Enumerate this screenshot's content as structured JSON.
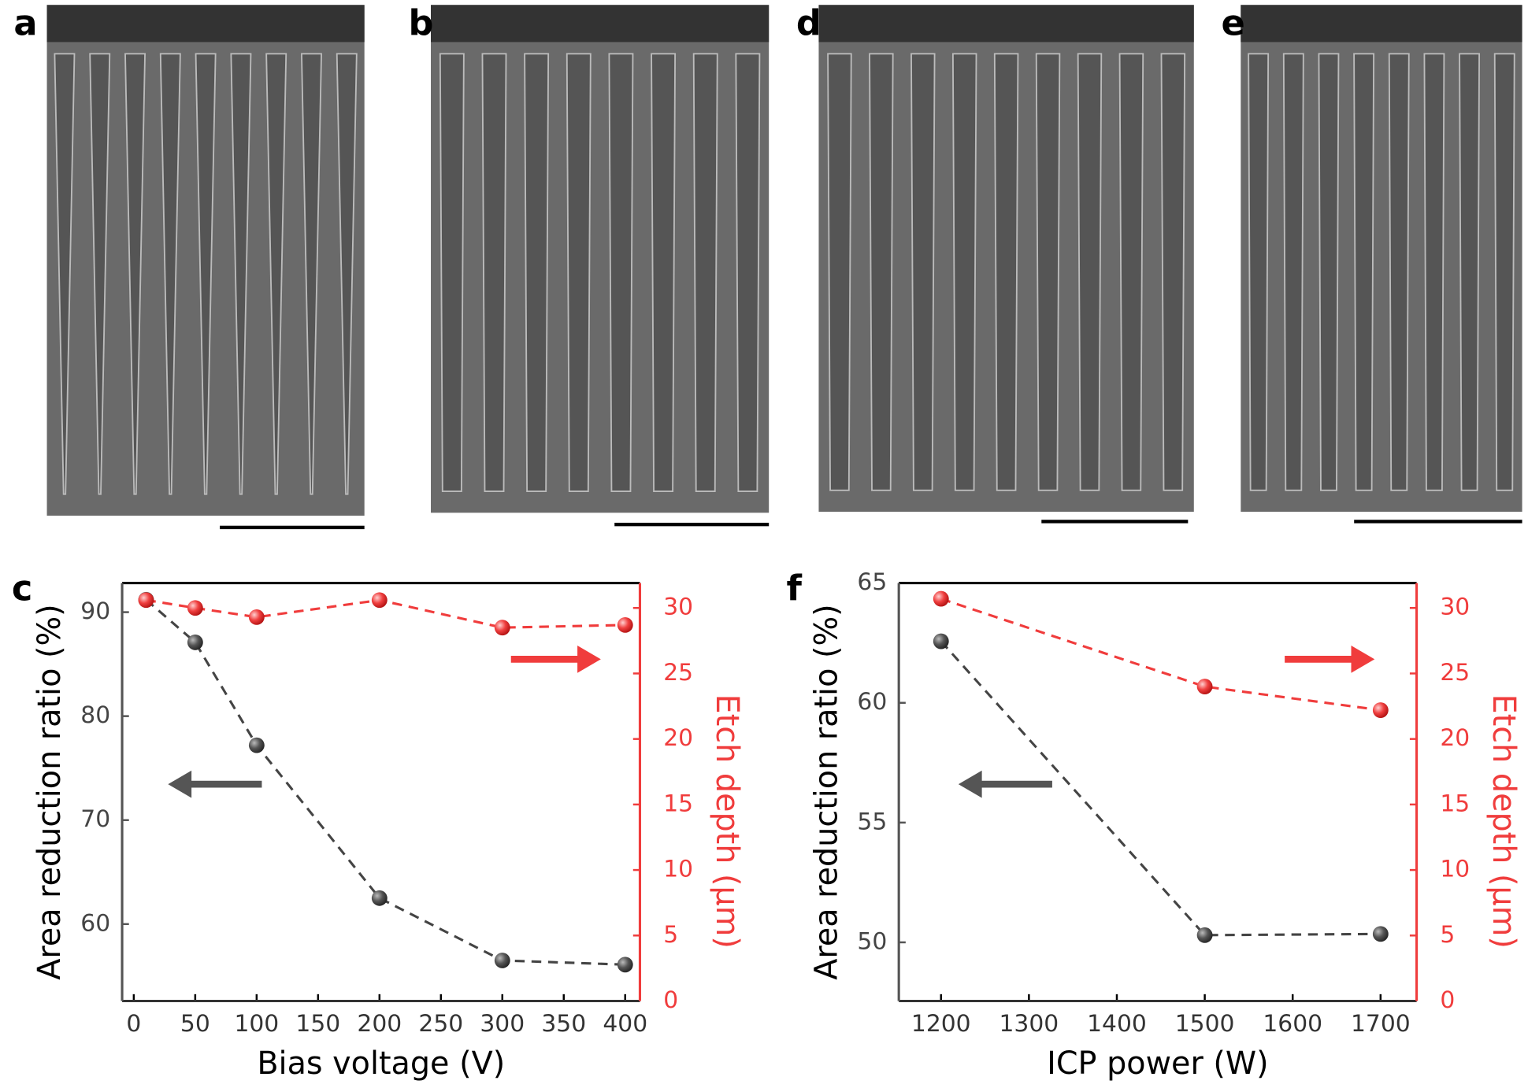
{
  "images": [
    {
      "label": "a"
    },
    {
      "label": "b"
    },
    {
      "label": "d"
    },
    {
      "label": "e"
    }
  ],
  "chart_data": [
    {
      "type": "line",
      "panel_label": "c",
      "x_label": "Bias voltage (V)",
      "y_label": "Area reduction ratio (%)",
      "y2_label": "Etch depth (μm)",
      "x": [
        10,
        50,
        100,
        200,
        300,
        400
      ],
      "xlim": [
        -9.5,
        412
      ],
      "xticks": [
        0,
        50,
        100,
        150,
        200,
        250,
        300,
        350,
        400
      ],
      "ylim": [
        52.6,
        92.8
      ],
      "yticks": [
        60,
        70,
        80,
        90
      ],
      "y2lim": [
        0,
        31.9
      ],
      "y2ticks": [
        0,
        5,
        10,
        15,
        20,
        25,
        30
      ],
      "series": [
        {
          "color": "#444444",
          "values": [
            91.2,
            87.1,
            77.2,
            62.5,
            56.5,
            56.1
          ]
        },
        {
          "color": "#f03c3c",
          "axis": "y2",
          "values": [
            30.6,
            30.0,
            29.3,
            30.6,
            28.5,
            28.7
          ]
        }
      ]
    },
    {
      "type": "line",
      "panel_label": "f",
      "x_label": "ICP power (W)",
      "y_label": "Area reduction ratio (%)",
      "y2_label": "Etch depth (μm)",
      "x": [
        1200,
        1500,
        1700
      ],
      "xlim": [
        1152,
        1741
      ],
      "xticks": [
        1200,
        1300,
        1400,
        1500,
        1600,
        1700
      ],
      "ylim": [
        47.55,
        65
      ],
      "yticks": [
        50,
        55,
        60,
        65
      ],
      "y2lim": [
        0,
        31.9
      ],
      "y2ticks": [
        0,
        5,
        10,
        15,
        20,
        25,
        30
      ],
      "series": [
        {
          "color": "#444444",
          "values": [
            62.57,
            50.3,
            50.35
          ]
        },
        {
          "color": "#f03c3c",
          "axis": "y2",
          "values": [
            30.7,
            24.0,
            22.2
          ]
        }
      ]
    }
  ]
}
